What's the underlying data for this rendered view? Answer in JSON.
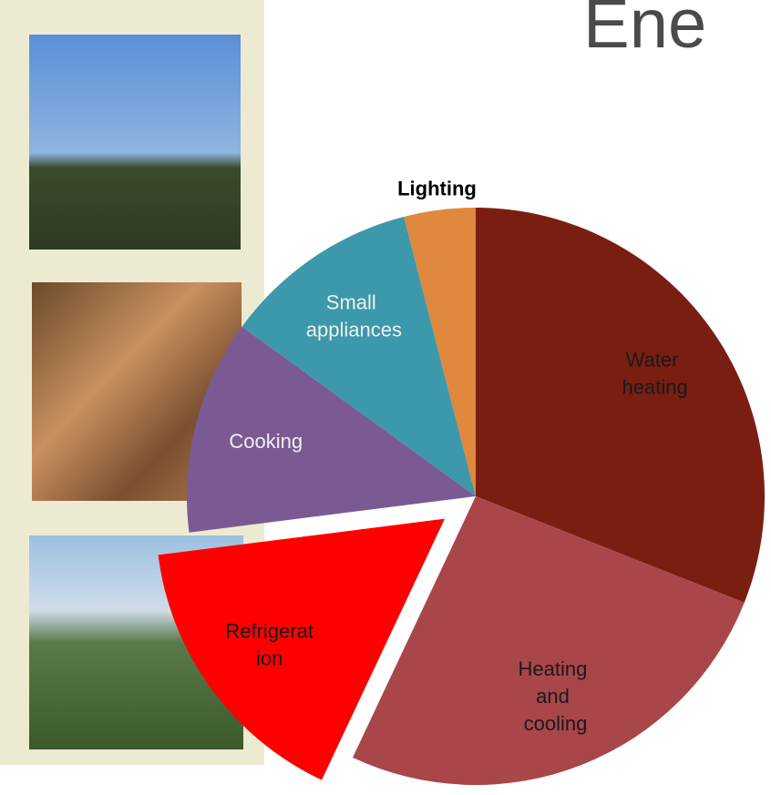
{
  "chart_data": {
    "type": "pie",
    "title": "Ene",
    "categories": [
      "Water heating",
      "Heating and cooling",
      "Refrigeration",
      "Cooking",
      "Small appliances",
      "Lighting"
    ],
    "values": [
      31,
      26,
      16,
      12,
      11,
      4
    ],
    "colors": [
      "#7a1e12",
      "#a8464a",
      "#ff0000",
      "#7b5a94",
      "#3c98ab",
      "#e0883e"
    ],
    "exploded": "Refrigeration"
  }
}
